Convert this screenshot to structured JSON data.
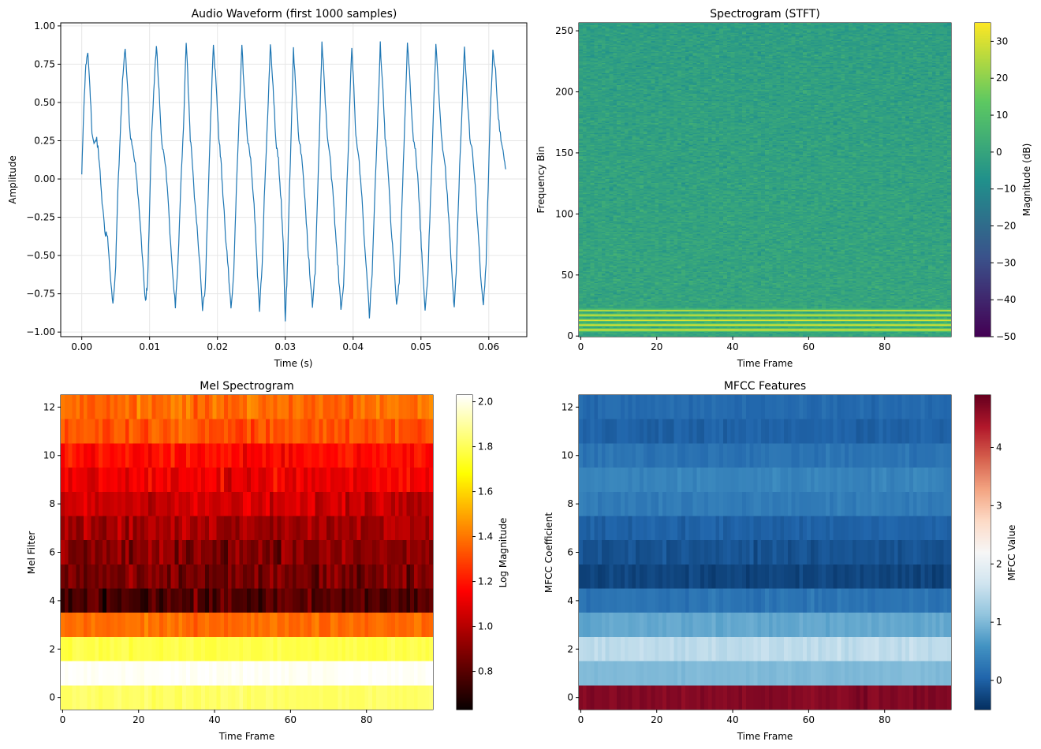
{
  "chart_data": [
    {
      "id": "waveform",
      "type": "line",
      "title": "Audio Waveform (first 1000 samples)",
      "xlabel": "Time (s)",
      "ylabel": "Amplitude",
      "xlim": [
        -0.0031,
        0.0656
      ],
      "ylim": [
        -1.03,
        1.02
      ],
      "xticks": [
        0.0,
        0.01,
        0.02,
        0.03,
        0.04,
        0.05,
        0.06
      ],
      "xtick_labels": [
        "0.00",
        "0.01",
        "0.02",
        "0.03",
        "0.04",
        "0.05",
        "0.06"
      ],
      "yticks": [
        -1.0,
        -0.75,
        -0.5,
        -0.25,
        0.0,
        0.25,
        0.5,
        0.75,
        1.0
      ],
      "ytick_labels": [
        "−1.00",
        "−0.75",
        "−0.50",
        "−0.25",
        "0.00",
        "0.25",
        "0.50",
        "0.75",
        "1.00"
      ],
      "grid": true,
      "color": "#1f77b4",
      "series": [
        {
          "name": "waveform",
          "x": [
            0.0,
            0.0003,
            0.0006,
            0.0009,
            0.0012,
            0.0015,
            0.0018,
            0.0022,
            0.0026,
            0.003,
            0.0034,
            0.0038,
            0.0042,
            0.0046,
            0.005,
            0.0053,
            0.0057,
            0.006,
            0.0064,
            0.0068,
            0.0072,
            0.0076,
            0.008,
            0.0085,
            0.009,
            0.0094,
            0.0097,
            0.01,
            0.0103,
            0.0107,
            0.011,
            0.0114,
            0.0118,
            0.0122,
            0.0126,
            0.013,
            0.0134,
            0.0138,
            0.0142,
            0.0146,
            0.015,
            0.0154,
            0.0157,
            0.016,
            0.0163,
            0.0166,
            0.017,
            0.0174,
            0.0178,
            0.0182,
            0.0186,
            0.019,
            0.0194,
            0.0198,
            0.0202,
            0.0205,
            0.0208,
            0.0212,
            0.0216,
            0.022,
            0.0224,
            0.0228,
            0.0232,
            0.0236,
            0.024,
            0.0244,
            0.0248,
            0.0252,
            0.0256,
            0.0259,
            0.0262,
            0.0266,
            0.027,
            0.0274,
            0.0278,
            0.0282,
            0.0286,
            0.029,
            0.0294,
            0.0297,
            0.03,
            0.0303,
            0.0306,
            0.0309,
            0.0312,
            0.0316,
            0.032,
            0.0324,
            0.0328,
            0.0332,
            0.0336,
            0.034,
            0.0344,
            0.0348,
            0.0351,
            0.0354,
            0.0358,
            0.0362,
            0.0366,
            0.037,
            0.0374,
            0.0378,
            0.0382,
            0.0386,
            0.039,
            0.0394,
            0.0398,
            0.0401,
            0.0404,
            0.0408,
            0.0412,
            0.0416,
            0.042,
            0.0424,
            0.0428,
            0.0432,
            0.0436,
            0.044,
            0.0444,
            0.0447,
            0.045,
            0.0453,
            0.0456,
            0.046,
            0.0464,
            0.0468,
            0.0472,
            0.0476,
            0.048,
            0.0484,
            0.0488,
            0.0492,
            0.0496,
            0.0499,
            0.0502,
            0.0506,
            0.051,
            0.0514,
            0.0518,
            0.0522,
            0.0526,
            0.053,
            0.0534,
            0.0538,
            0.0542,
            0.0546,
            0.0549,
            0.0552,
            0.0556,
            0.056,
            0.0564,
            0.0568,
            0.0572,
            0.0576,
            0.058,
            0.0584,
            0.0588,
            0.0592,
            0.0596,
            0.0599,
            0.0602,
            0.0606,
            0.061,
            0.0614,
            0.0618,
            0.0622,
            0.0625
          ],
          "y": [
            0.03,
            0.45,
            0.75,
            0.82,
            0.62,
            0.3,
            0.22,
            0.27,
            0.1,
            -0.15,
            -0.33,
            -0.38,
            -0.62,
            -0.83,
            -0.58,
            -0.1,
            0.3,
            0.65,
            0.86,
            0.55,
            0.25,
            0.18,
            0.05,
            -0.2,
            -0.55,
            -0.8,
            -0.68,
            -0.2,
            0.3,
            0.65,
            0.87,
            0.58,
            0.22,
            0.15,
            -0.05,
            -0.35,
            -0.62,
            -0.84,
            -0.55,
            -0.05,
            0.35,
            0.9,
            0.6,
            0.25,
            0.12,
            -0.1,
            -0.32,
            -0.55,
            -0.85,
            -0.7,
            -0.15,
            0.4,
            0.88,
            0.62,
            0.27,
            0.15,
            -0.1,
            -0.38,
            -0.6,
            -0.85,
            -0.62,
            -0.05,
            0.4,
            0.87,
            0.55,
            0.27,
            0.18,
            -0.05,
            -0.33,
            -0.62,
            -0.86,
            -0.55,
            0.0,
            0.4,
            0.89,
            0.6,
            0.25,
            0.12,
            -0.15,
            -0.42,
            -0.92,
            -0.6,
            -0.1,
            0.35,
            0.85,
            0.55,
            0.25,
            0.15,
            -0.08,
            -0.35,
            -0.62,
            -0.84,
            -0.6,
            -0.05,
            0.4,
            0.9,
            0.6,
            0.28,
            0.15,
            -0.08,
            -0.35,
            -0.6,
            -0.84,
            -0.7,
            -0.15,
            0.35,
            0.86,
            0.6,
            0.28,
            0.15,
            -0.05,
            -0.35,
            -0.62,
            -0.9,
            -0.62,
            -0.1,
            0.35,
            0.87,
            0.58,
            0.28,
            0.15,
            -0.05,
            -0.32,
            -0.55,
            -0.83,
            -0.66,
            -0.15,
            0.35,
            0.88,
            0.62,
            0.3,
            0.18,
            -0.05,
            -0.3,
            -0.55,
            -0.85,
            -0.65,
            -0.15,
            0.38,
            0.88,
            0.6,
            0.28,
            0.15,
            -0.05,
            -0.35,
            -0.65,
            -0.84,
            -0.6,
            -0.05,
            0.4,
            0.86,
            0.55,
            0.27,
            0.15,
            -0.05,
            -0.33,
            -0.62,
            -0.84,
            -0.55,
            -0.05,
            0.4,
            0.82,
            0.7,
            0.4,
            0.25,
            0.15,
            0.05
          ]
        }
      ]
    },
    {
      "id": "spectrogram",
      "type": "heatmap",
      "title": "Spectrogram (STFT)",
      "xlabel": "Time Frame",
      "ylabel": "Frequency Bin",
      "xlim": [
        -0.5,
        97.5
      ],
      "ylim": [
        -0.5,
        256.5
      ],
      "xticks": [
        0,
        20,
        40,
        60,
        80
      ],
      "yticks": [
        0,
        50,
        100,
        150,
        200,
        250
      ],
      "colormap": "viridis",
      "colorbar": {
        "label": "Magnitude (dB)",
        "min": -50,
        "max": 35,
        "ticks": [
          -50,
          -40,
          -30,
          -20,
          -10,
          0,
          10,
          20,
          30
        ],
        "tick_labels": [
          "−50",
          "−40",
          "−30",
          "−20",
          "−10",
          "0",
          "10",
          "20",
          "30"
        ]
      },
      "frames": 98,
      "freq_bins": 257,
      "noise_floor_db": 0,
      "tonal_bands": [
        {
          "bin": 5,
          "db": 30
        },
        {
          "bin": 9,
          "db": 33
        },
        {
          "bin": 13,
          "db": 30
        },
        {
          "bin": 17,
          "db": 31
        },
        {
          "bin": 21,
          "db": 28
        }
      ]
    },
    {
      "id": "mel",
      "type": "heatmap",
      "title": "Mel Spectrogram",
      "xlabel": "Time Frame",
      "ylabel": "Mel Filter",
      "xlim": [
        -0.5,
        97.5
      ],
      "ylim": [
        -0.5,
        12.5
      ],
      "xticks": [
        0,
        20,
        40,
        60,
        80
      ],
      "yticks": [
        0,
        2,
        4,
        6,
        8,
        10,
        12
      ],
      "colormap": "hot",
      "colorbar": {
        "label": "Log Magnitude",
        "min": 0.63,
        "max": 2.03,
        "ticks": [
          0.8,
          1.0,
          1.2,
          1.4,
          1.6,
          1.8,
          2.0
        ],
        "tick_labels": [
          "0.8",
          "1.0",
          "1.2",
          "1.4",
          "1.6",
          "1.8",
          "2.0"
        ]
      },
      "frames": 98,
      "filters": 13,
      "row_means": [
        1.82,
        2.02,
        1.78,
        1.38,
        0.78,
        0.85,
        0.9,
        0.97,
        1.05,
        1.12,
        1.18,
        1.33,
        1.38
      ],
      "row_spread": [
        0.03,
        0.02,
        0.03,
        0.05,
        0.12,
        0.12,
        0.12,
        0.1,
        0.1,
        0.1,
        0.09,
        0.08,
        0.08
      ]
    },
    {
      "id": "mfcc",
      "type": "heatmap",
      "title": "MFCC Features",
      "xlabel": "Time Frame",
      "ylabel": "MFCC Coefficient",
      "xlim": [
        -0.5,
        97.5
      ],
      "ylim": [
        -0.5,
        12.5
      ],
      "xticks": [
        0,
        20,
        40,
        60,
        80
      ],
      "yticks": [
        0,
        2,
        4,
        6,
        8,
        10,
        12
      ],
      "colormap": "RdBu_r",
      "colorbar": {
        "label": "MFCC Value",
        "min": -0.5,
        "max": 4.9,
        "ticks": [
          0,
          1,
          2,
          3,
          4
        ],
        "tick_labels": [
          "0",
          "1",
          "2",
          "3",
          "4"
        ]
      },
      "frames": 98,
      "coefficients": 13,
      "row_means": [
        4.7,
        1.0,
        1.5,
        0.8,
        0.2,
        -0.3,
        -0.15,
        0.0,
        0.3,
        0.4,
        0.2,
        0.0,
        0.1
      ],
      "row_spread": [
        0.12,
        0.05,
        0.1,
        0.08,
        0.1,
        0.1,
        0.1,
        0.1,
        0.1,
        0.1,
        0.1,
        0.1,
        0.1
      ]
    }
  ]
}
